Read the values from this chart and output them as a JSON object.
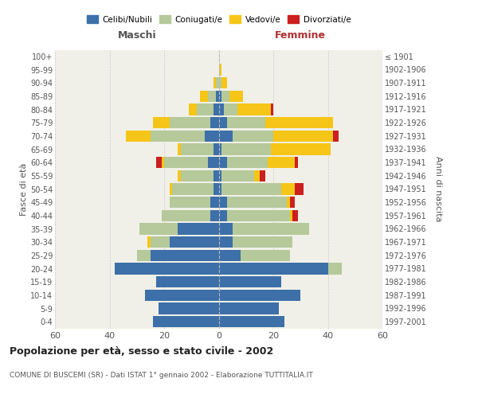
{
  "age_groups": [
    "0-4",
    "5-9",
    "10-14",
    "15-19",
    "20-24",
    "25-29",
    "30-34",
    "35-39",
    "40-44",
    "45-49",
    "50-54",
    "55-59",
    "60-64",
    "65-69",
    "70-74",
    "75-79",
    "80-84",
    "85-89",
    "90-94",
    "95-99",
    "100+"
  ],
  "birth_years": [
    "1997-2001",
    "1992-1996",
    "1987-1991",
    "1982-1986",
    "1977-1981",
    "1972-1976",
    "1967-1971",
    "1962-1966",
    "1957-1961",
    "1952-1956",
    "1947-1951",
    "1942-1946",
    "1937-1941",
    "1932-1936",
    "1927-1931",
    "1922-1926",
    "1917-1921",
    "1912-1916",
    "1907-1911",
    "1902-1906",
    "≤ 1901"
  ],
  "colors": {
    "celibe": "#3d6fa8",
    "coniugato": "#b5c99a",
    "vedovo": "#f5c518",
    "divorziato": "#cc1f1f"
  },
  "males": {
    "celibe": [
      24,
      22,
      27,
      23,
      38,
      25,
      18,
      15,
      3,
      3,
      2,
      2,
      4,
      2,
      5,
      3,
      2,
      1,
      0,
      0,
      0
    ],
    "coniugato": [
      0,
      0,
      0,
      0,
      0,
      5,
      7,
      14,
      18,
      15,
      15,
      12,
      16,
      12,
      20,
      15,
      6,
      3,
      1,
      0,
      0
    ],
    "vedovo": [
      0,
      0,
      0,
      0,
      0,
      0,
      1,
      0,
      0,
      0,
      1,
      1,
      1,
      1,
      9,
      6,
      3,
      3,
      1,
      0,
      0
    ],
    "divorziato": [
      0,
      0,
      0,
      0,
      0,
      0,
      0,
      0,
      0,
      0,
      0,
      0,
      2,
      0,
      0,
      0,
      0,
      0,
      0,
      0,
      0
    ]
  },
  "females": {
    "celibe": [
      24,
      22,
      30,
      23,
      40,
      8,
      5,
      5,
      3,
      3,
      1,
      1,
      3,
      1,
      5,
      3,
      2,
      1,
      0,
      0,
      0
    ],
    "coniugato": [
      0,
      0,
      0,
      0,
      5,
      18,
      22,
      28,
      23,
      22,
      22,
      12,
      15,
      18,
      15,
      14,
      5,
      3,
      1,
      0,
      0
    ],
    "vedovo": [
      0,
      0,
      0,
      0,
      0,
      0,
      0,
      0,
      1,
      1,
      5,
      2,
      10,
      22,
      22,
      25,
      12,
      5,
      2,
      1,
      0
    ],
    "divorziato": [
      0,
      0,
      0,
      0,
      0,
      0,
      0,
      0,
      2,
      2,
      3,
      2,
      1,
      0,
      2,
      0,
      1,
      0,
      0,
      0,
      0
    ]
  },
  "xlim": 60,
  "title": "Popolazione per età, sesso e stato civile - 2002",
  "subtitle": "COMUNE DI BUSCEMI (SR) - Dati ISTAT 1° gennaio 2002 - Elaborazione TUTTITALIA.IT",
  "xlabel_left": "Maschi",
  "xlabel_right": "Femmine",
  "ylabel_left": "Fasce di età",
  "ylabel_right": "Anni di nascita",
  "bg_color": "#f0f0e8",
  "grid_color": "#cccccc",
  "maschi_color": "#555555",
  "femmine_color": "#b03030"
}
